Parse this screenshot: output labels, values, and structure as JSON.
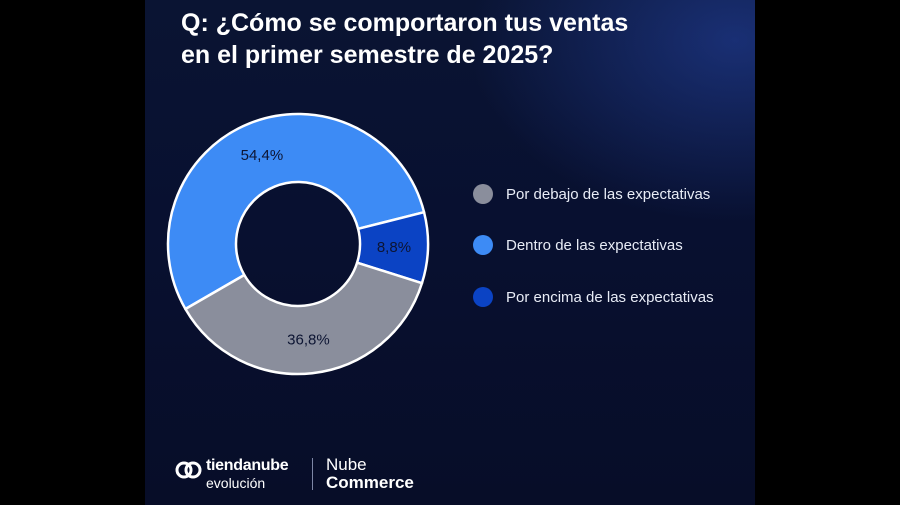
{
  "title": {
    "line1": "Q: ¿Cómo se comportaron tus ventas",
    "line2": "en el primer semestre de 2025?"
  },
  "chart_data": {
    "type": "pie",
    "donut": true,
    "categories": [
      "Dentro de las expectativas",
      "Por encima de las expectativas",
      "Por debajo de las expectativas"
    ],
    "values": [
      54.4,
      8.8,
      36.8
    ],
    "value_labels": [
      "54,4%",
      "8,8%",
      "36,8%"
    ],
    "colors": [
      "#3d8bf5",
      "#0b43c4",
      "#8a8e9c"
    ],
    "legend_position": "right"
  },
  "legend": [
    {
      "label": "Por debajo de las expectativas",
      "color": "#8a8e9c"
    },
    {
      "label": "Dentro de las expectativas",
      "color": "#3d8bf5"
    },
    {
      "label": "Por  encima de las expectativas",
      "color": "#0b43c4"
    }
  ],
  "footer": {
    "brand1_top": "tiendanube",
    "brand1_bottom": "evolución",
    "brand2_top": "Nube",
    "brand2_bottom": "Commerce"
  },
  "colors": {
    "background": "#081030",
    "text": "#ffffff",
    "slice_border": "#ffffff",
    "label_text": "#0d1533"
  }
}
